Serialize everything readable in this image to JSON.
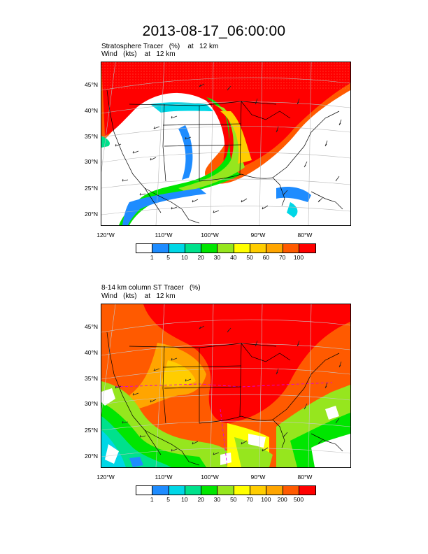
{
  "title": "2013-08-17_06:00:00",
  "plots": [
    {
      "label_line1": "Stratosphere Tracer   (%)    at   12 km",
      "label_line2": "Wind   (kts)    at   12 km",
      "lat_labels": [
        "45°N",
        "40°N",
        "35°N",
        "30°N",
        "25°N",
        "20°N"
      ],
      "lon_labels": [
        "120°W",
        "110°W",
        "100°W",
        "90°W",
        "80°W"
      ],
      "colorbar_colors": [
        "#ffffff",
        "#1e8cff",
        "#00d7e6",
        "#00e18c",
        "#00e600",
        "#96e61e",
        "#ffff00",
        "#ffcd00",
        "#ffa500",
        "#ff5a00",
        "#ff0000"
      ],
      "colorbar_labels": [
        "1",
        "5",
        "10",
        "20",
        "30",
        "40",
        "50",
        "60",
        "70",
        "100"
      ]
    },
    {
      "label_line1": "8-14 km column ST Tracer   (%)",
      "label_line2": "Wind   (kts)    at   12 km",
      "lat_labels": [
        "45°N",
        "40°N",
        "35°N",
        "30°N",
        "25°N",
        "20°N"
      ],
      "lon_labels": [
        "120°W",
        "110°W",
        "100°W",
        "90°W",
        "80°W"
      ],
      "colorbar_colors": [
        "#ffffff",
        "#1e8cff",
        "#00d7e6",
        "#00e18c",
        "#00e600",
        "#96e61e",
        "#ffff00",
        "#ffcd00",
        "#ffa500",
        "#ff5a00",
        "#ff0000"
      ],
      "colorbar_labels": [
        "1",
        "5",
        "10",
        "20",
        "30",
        "50",
        "70",
        "100",
        "200",
        "500"
      ]
    }
  ]
}
